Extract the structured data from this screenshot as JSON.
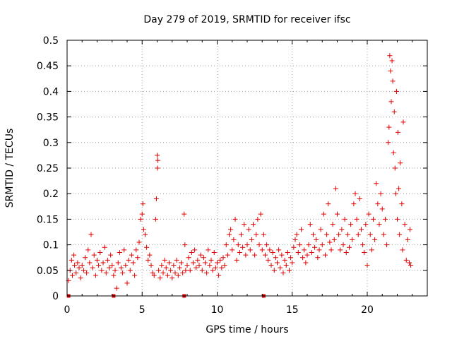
{
  "chart_data": {
    "type": "scatter",
    "title": "Day 279 of 2019, SRMTID for receiver ifsc",
    "xlabel": "GPS time / hours",
    "ylabel": "SRMTID / TECUs",
    "xlim": [
      0,
      24
    ],
    "ylim": [
      0,
      0.5
    ],
    "x_ticks": [
      0,
      5,
      10,
      15,
      20
    ],
    "x_tick_labels": [
      "0",
      "5",
      "10",
      "15",
      "20"
    ],
    "y_ticks": [
      0,
      0.05,
      0.1,
      0.15,
      0.2,
      0.25,
      0.3,
      0.35,
      0.4,
      0.45,
      0.5
    ],
    "y_tick_labels": [
      "0",
      "0.05",
      "0.1",
      "0.15",
      "0.2",
      "0.25",
      "0.3",
      "0.35",
      "0.4",
      "0.45",
      "0.5"
    ],
    "grid": true,
    "marker": "+",
    "color": "#e00000",
    "baseline_markers_x": [
      0.1,
      3.1,
      7.8,
      13.1
    ],
    "series": [
      {
        "name": "SRMTID",
        "points": [
          [
            0.1,
            0.03
          ],
          [
            0.2,
            0.05
          ],
          [
            0.3,
            0.07
          ],
          [
            0.35,
            0.04
          ],
          [
            0.45,
            0.08
          ],
          [
            0.5,
            0.06
          ],
          [
            0.6,
            0.045
          ],
          [
            0.7,
            0.065
          ],
          [
            0.8,
            0.055
          ],
          [
            0.9,
            0.035
          ],
          [
            1.0,
            0.06
          ],
          [
            1.1,
            0.05
          ],
          [
            1.2,
            0.075
          ],
          [
            1.3,
            0.045
          ],
          [
            1.4,
            0.09
          ],
          [
            1.5,
            0.065
          ],
          [
            1.6,
            0.12
          ],
          [
            1.7,
            0.055
          ],
          [
            1.8,
            0.08
          ],
          [
            1.9,
            0.04
          ],
          [
            2.0,
            0.07
          ],
          [
            2.1,
            0.06
          ],
          [
            2.2,
            0.085
          ],
          [
            2.3,
            0.05
          ],
          [
            2.4,
            0.065
          ],
          [
            2.5,
            0.095
          ],
          [
            2.6,
            0.045
          ],
          [
            2.7,
            0.07
          ],
          [
            2.8,
            0.055
          ],
          [
            2.9,
            0.08
          ],
          [
            3.0,
            0.06
          ],
          [
            3.1,
            0.04
          ],
          [
            3.2,
            0.05
          ],
          [
            3.3,
            0.015
          ],
          [
            3.4,
            0.065
          ],
          [
            3.5,
            0.085
          ],
          [
            3.6,
            0.055
          ],
          [
            3.7,
            0.045
          ],
          [
            3.8,
            0.09
          ],
          [
            3.9,
            0.06
          ],
          [
            4.0,
            0.025
          ],
          [
            4.1,
            0.07
          ],
          [
            4.2,
            0.05
          ],
          [
            4.3,
            0.08
          ],
          [
            4.4,
            0.065
          ],
          [
            4.5,
            0.04
          ],
          [
            4.6,
            0.09
          ],
          [
            4.7,
            0.075
          ],
          [
            4.8,
            0.105
          ],
          [
            4.9,
            0.15
          ],
          [
            5.0,
            0.16
          ],
          [
            5.05,
            0.18
          ],
          [
            5.1,
            0.13
          ],
          [
            5.2,
            0.12
          ],
          [
            5.3,
            0.095
          ],
          [
            5.4,
            0.07
          ],
          [
            5.5,
            0.08
          ],
          [
            5.6,
            0.06
          ],
          [
            5.7,
            0.045
          ],
          [
            5.8,
            0.04
          ],
          [
            5.9,
            0.15
          ],
          [
            5.95,
            0.19
          ],
          [
            6.0,
            0.275
          ],
          [
            6.02,
            0.25
          ],
          [
            6.05,
            0.265
          ],
          [
            6.1,
            0.05
          ],
          [
            6.2,
            0.035
          ],
          [
            6.3,
            0.06
          ],
          [
            6.4,
            0.045
          ],
          [
            6.5,
            0.07
          ],
          [
            6.6,
            0.055
          ],
          [
            6.7,
            0.04
          ],
          [
            6.8,
            0.065
          ],
          [
            6.9,
            0.05
          ],
          [
            7.0,
            0.035
          ],
          [
            7.1,
            0.06
          ],
          [
            7.2,
            0.045
          ],
          [
            7.3,
            0.07
          ],
          [
            7.4,
            0.04
          ],
          [
            7.5,
            0.055
          ],
          [
            7.6,
            0.065
          ],
          [
            7.7,
            0.045
          ],
          [
            7.8,
            0.16
          ],
          [
            7.85,
            0.1
          ],
          [
            7.9,
            0.05
          ],
          [
            8.0,
            0.06
          ],
          [
            8.1,
            0.075
          ],
          [
            8.2,
            0.05
          ],
          [
            8.3,
            0.085
          ],
          [
            8.4,
            0.065
          ],
          [
            8.5,
            0.09
          ],
          [
            8.6,
            0.055
          ],
          [
            8.7,
            0.07
          ],
          [
            8.8,
            0.06
          ],
          [
            8.9,
            0.08
          ],
          [
            9.0,
            0.05
          ],
          [
            9.1,
            0.075
          ],
          [
            9.2,
            0.065
          ],
          [
            9.3,
            0.045
          ],
          [
            9.4,
            0.09
          ],
          [
            9.5,
            0.06
          ],
          [
            9.6,
            0.07
          ],
          [
            9.7,
            0.05
          ],
          [
            9.8,
            0.085
          ],
          [
            9.9,
            0.055
          ],
          [
            10.0,
            0.065
          ],
          [
            10.1,
            0.04
          ],
          [
            10.2,
            0.07
          ],
          [
            10.3,
            0.055
          ],
          [
            10.4,
            0.075
          ],
          [
            10.5,
            0.06
          ],
          [
            10.6,
            0.1
          ],
          [
            10.7,
            0.08
          ],
          [
            10.8,
            0.12
          ],
          [
            10.9,
            0.13
          ],
          [
            11.0,
            0.09
          ],
          [
            11.1,
            0.11
          ],
          [
            11.2,
            0.15
          ],
          [
            11.3,
            0.07
          ],
          [
            11.4,
            0.1
          ],
          [
            11.5,
            0.085
          ],
          [
            11.6,
            0.12
          ],
          [
            11.7,
            0.095
          ],
          [
            11.8,
            0.14
          ],
          [
            11.9,
            0.08
          ],
          [
            12.0,
            0.1
          ],
          [
            12.1,
            0.13
          ],
          [
            12.2,
            0.09
          ],
          [
            12.3,
            0.11
          ],
          [
            12.4,
            0.14
          ],
          [
            12.5,
            0.08
          ],
          [
            12.6,
            0.12
          ],
          [
            12.7,
            0.15
          ],
          [
            12.8,
            0.1
          ],
          [
            12.9,
            0.16
          ],
          [
            13.0,
            0.09
          ],
          [
            13.1,
            0.12
          ],
          [
            13.2,
            0.08
          ],
          [
            13.3,
            0.1
          ],
          [
            13.4,
            0.07
          ],
          [
            13.5,
            0.09
          ],
          [
            13.6,
            0.06
          ],
          [
            13.7,
            0.085
          ],
          [
            13.8,
            0.05
          ],
          [
            13.9,
            0.075
          ],
          [
            14.0,
            0.065
          ],
          [
            14.1,
            0.09
          ],
          [
            14.2,
            0.055
          ],
          [
            14.3,
            0.08
          ],
          [
            14.4,
            0.045
          ],
          [
            14.5,
            0.07
          ],
          [
            14.6,
            0.06
          ],
          [
            14.7,
            0.085
          ],
          [
            14.8,
            0.05
          ],
          [
            14.9,
            0.075
          ],
          [
            15.0,
            0.065
          ],
          [
            15.1,
            0.095
          ],
          [
            15.2,
            0.11
          ],
          [
            15.3,
            0.12
          ],
          [
            15.4,
            0.085
          ],
          [
            15.5,
            0.1
          ],
          [
            15.6,
            0.13
          ],
          [
            15.7,
            0.075
          ],
          [
            15.8,
            0.09
          ],
          [
            15.9,
            0.065
          ],
          [
            16.0,
            0.08
          ],
          [
            16.1,
            0.1
          ],
          [
            16.2,
            0.14
          ],
          [
            16.3,
            0.085
          ],
          [
            16.4,
            0.12
          ],
          [
            16.5,
            0.095
          ],
          [
            16.6,
            0.11
          ],
          [
            16.7,
            0.075
          ],
          [
            16.8,
            0.09
          ],
          [
            16.9,
            0.13
          ],
          [
            17.0,
            0.1
          ],
          [
            17.1,
            0.16
          ],
          [
            17.2,
            0.08
          ],
          [
            17.3,
            0.12
          ],
          [
            17.4,
            0.18
          ],
          [
            17.5,
            0.105
          ],
          [
            17.6,
            0.09
          ],
          [
            17.7,
            0.14
          ],
          [
            17.8,
            0.11
          ],
          [
            17.9,
            0.21
          ],
          [
            18.0,
            0.16
          ],
          [
            18.1,
            0.12
          ],
          [
            18.2,
            0.09
          ],
          [
            18.3,
            0.13
          ],
          [
            18.4,
            0.1
          ],
          [
            18.5,
            0.15
          ],
          [
            18.6,
            0.085
          ],
          [
            18.7,
            0.12
          ],
          [
            18.8,
            0.095
          ],
          [
            18.9,
            0.14
          ],
          [
            19.0,
            0.11
          ],
          [
            19.1,
            0.18
          ],
          [
            19.2,
            0.2
          ],
          [
            19.3,
            0.15
          ],
          [
            19.4,
            0.12
          ],
          [
            19.5,
            0.19
          ],
          [
            19.6,
            0.13
          ],
          [
            19.7,
            0.1
          ],
          [
            19.8,
            0.085
          ],
          [
            19.9,
            0.14
          ],
          [
            20.0,
            0.06
          ],
          [
            20.1,
            0.16
          ],
          [
            20.2,
            0.12
          ],
          [
            20.3,
            0.09
          ],
          [
            20.4,
            0.15
          ],
          [
            20.5,
            0.11
          ],
          [
            20.6,
            0.22
          ],
          [
            20.7,
            0.18
          ],
          [
            20.8,
            0.14
          ],
          [
            20.9,
            0.2
          ],
          [
            21.0,
            0.17
          ],
          [
            21.1,
            0.12
          ],
          [
            21.2,
            0.15
          ],
          [
            21.3,
            0.1
          ],
          [
            21.4,
            0.3
          ],
          [
            21.45,
            0.33
          ],
          [
            21.5,
            0.47
          ],
          [
            21.55,
            0.44
          ],
          [
            21.6,
            0.38
          ],
          [
            21.65,
            0.46
          ],
          [
            21.7,
            0.42
          ],
          [
            21.75,
            0.28
          ],
          [
            21.8,
            0.36
          ],
          [
            21.85,
            0.25
          ],
          [
            21.9,
            0.2
          ],
          [
            21.95,
            0.4
          ],
          [
            22.0,
            0.15
          ],
          [
            22.05,
            0.32
          ],
          [
            22.1,
            0.21
          ],
          [
            22.15,
            0.12
          ],
          [
            22.2,
            0.26
          ],
          [
            22.3,
            0.18
          ],
          [
            22.35,
            0.09
          ],
          [
            22.4,
            0.34
          ],
          [
            22.5,
            0.14
          ],
          [
            22.6,
            0.07
          ],
          [
            22.7,
            0.11
          ],
          [
            22.8,
            0.065
          ],
          [
            22.85,
            0.13
          ],
          [
            22.9,
            0.06
          ]
        ]
      }
    ]
  }
}
